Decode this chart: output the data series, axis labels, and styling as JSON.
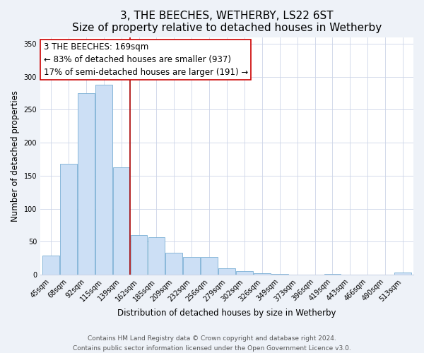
{
  "title": "3, THE BEECHES, WETHERBY, LS22 6ST",
  "subtitle": "Size of property relative to detached houses in Wetherby",
  "xlabel": "Distribution of detached houses by size in Wetherby",
  "ylabel": "Number of detached properties",
  "bar_labels": [
    "45sqm",
    "68sqm",
    "92sqm",
    "115sqm",
    "139sqm",
    "162sqm",
    "185sqm",
    "209sqm",
    "232sqm",
    "256sqm",
    "279sqm",
    "302sqm",
    "326sqm",
    "349sqm",
    "373sqm",
    "396sqm",
    "419sqm",
    "443sqm",
    "466sqm",
    "490sqm",
    "513sqm"
  ],
  "bar_values": [
    29,
    168,
    275,
    288,
    163,
    60,
    57,
    33,
    27,
    27,
    10,
    5,
    2,
    1,
    0,
    0,
    1,
    0,
    0,
    0,
    3
  ],
  "bar_color": "#ccdff5",
  "bar_edge_color": "#7aafd4",
  "reference_line_x": 4.5,
  "reference_line_color": "#aa0000",
  "annotation_line1": "3 THE BEECHES: 169sqm",
  "annotation_line2": "← 83% of detached houses are smaller (937)",
  "annotation_line3": "17% of semi-detached houses are larger (191) →",
  "annotation_box_edge_color": "#cc0000",
  "annotation_box_face_color": "white",
  "ylim": [
    0,
    360
  ],
  "yticks": [
    0,
    50,
    100,
    150,
    200,
    250,
    300,
    350
  ],
  "footer_line1": "Contains HM Land Registry data © Crown copyright and database right 2024.",
  "footer_line2": "Contains public sector information licensed under the Open Government Licence v3.0.",
  "background_color": "#eef2f8",
  "plot_background_color": "#ffffff",
  "grid_color": "#ccd5e8",
  "title_fontsize": 11,
  "subtitle_fontsize": 9.5,
  "axis_label_fontsize": 8.5,
  "tick_fontsize": 7,
  "annotation_fontsize": 8.5,
  "footer_fontsize": 6.5
}
